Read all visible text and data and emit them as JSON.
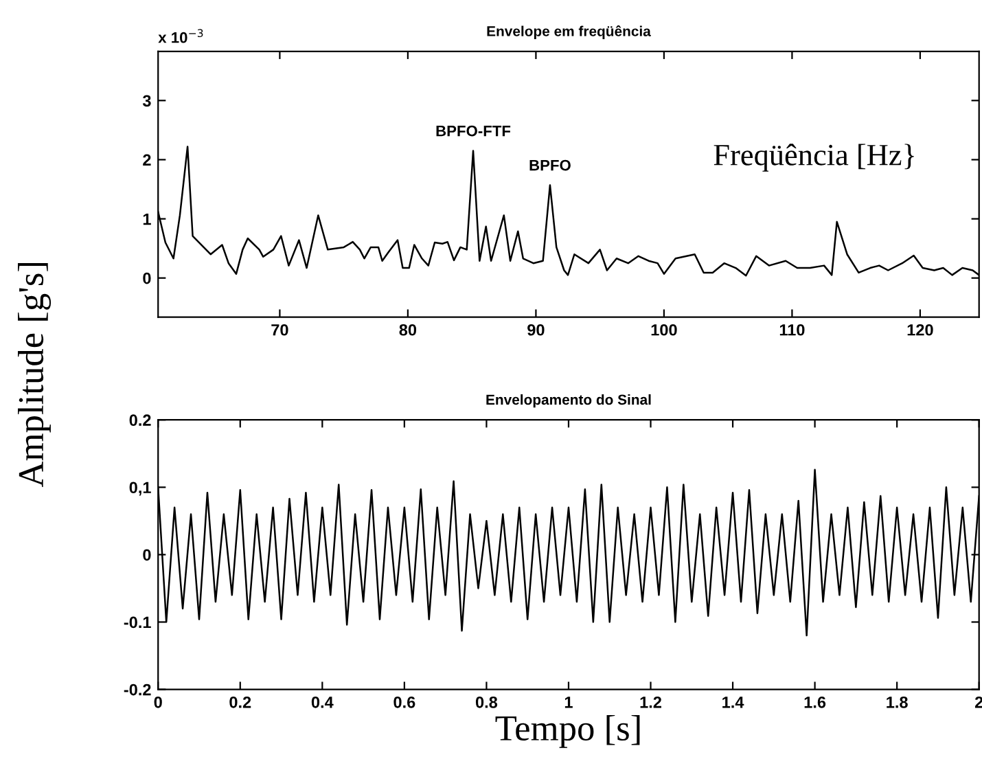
{
  "chart_data": [
    {
      "type": "line",
      "title": "Envelope em freqüência",
      "ylabel": "Amplitude [g's]",
      "x": [
        60.5,
        61.07,
        61.7,
        62.2,
        62.8,
        63.2,
        64.6,
        65.5,
        66.0,
        66.6,
        67.1,
        67.5,
        68.4,
        68.7,
        69.5,
        70.1,
        70.7,
        71.5,
        72.1,
        73.0,
        73.75,
        75.0,
        75.7,
        76.25,
        76.6,
        77.1,
        77.7,
        78.0,
        78.5,
        79.2,
        79.6,
        80.1,
        80.5,
        81.1,
        81.6,
        82.1,
        82.7,
        83.1,
        83.6,
        84.1,
        84.6,
        85.1,
        85.6,
        86.1,
        86.5,
        87.5,
        88.0,
        88.6,
        89.0,
        89.8,
        90.55,
        91.1,
        91.6,
        92.2,
        92.5,
        93.0,
        94.1,
        95.0,
        95.55,
        96.3,
        97.2,
        98.0,
        98.8,
        99.5,
        100.0,
        100.9,
        102.4,
        103.1,
        103.8,
        104.7,
        105.6,
        106.4,
        107.2,
        108.2,
        109.5,
        110.4,
        111.4,
        112.5,
        113.1,
        113.5,
        114.3,
        115.2,
        116.1,
        116.8,
        117.5,
        118.6,
        119.5,
        120.2,
        121.1,
        121.8,
        122.5,
        123.3,
        124.1,
        124.6
      ],
      "series": [
        {
          "color": "#000000",
          "values": [
            1.12,
            0.6,
            0.33,
            1.06,
            2.22,
            0.71,
            0.4,
            0.56,
            0.25,
            0.07,
            0.48,
            0.67,
            0.48,
            0.36,
            0.48,
            0.71,
            0.21,
            0.64,
            0.17,
            1.06,
            0.48,
            0.52,
            0.61,
            0.48,
            0.33,
            0.52,
            0.52,
            0.29,
            0.44,
            0.64,
            0.17,
            0.17,
            0.56,
            0.33,
            0.21,
            0.6,
            0.58,
            0.61,
            0.3,
            0.52,
            0.48,
            2.15,
            0.29,
            0.87,
            0.29,
            1.06,
            0.29,
            0.79,
            0.33,
            0.25,
            0.29,
            1.57,
            0.52,
            0.13,
            0.05,
            0.4,
            0.25,
            0.48,
            0.13,
            0.33,
            0.25,
            0.37,
            0.29,
            0.25,
            0.07,
            0.33,
            0.4,
            0.09,
            0.09,
            0.25,
            0.17,
            0.04,
            0.37,
            0.21,
            0.29,
            0.17,
            0.17,
            0.21,
            0.05,
            0.95,
            0.4,
            0.09,
            0.17,
            0.21,
            0.13,
            0.25,
            0.38,
            0.17,
            0.13,
            0.17,
            0.05,
            0.17,
            0.13,
            0.05
          ]
        }
      ],
      "xlim": [
        60.5,
        124.6
      ],
      "ylim": [
        -0.66,
        3.83
      ],
      "xticks": [
        70,
        80,
        90,
        100,
        110,
        120
      ],
      "yticks": [
        0,
        1,
        2,
        3
      ],
      "annotations": [
        "x 10$^{−3}$",
        "Freqüência [Hz}",
        {
          "text": "BPFO-FTF",
          "x": 85.1,
          "y": 2.15
        },
        {
          "text": "BPFO",
          "x": 91.1,
          "y": 1.57
        }
      ],
      "grid": false,
      "legend": false,
      "marker": "none",
      "line_style": "solid"
    },
    {
      "type": "line",
      "title": "Envelopamento do Sinal",
      "xlabel": "Tempo [s]",
      "x": [
        0.0,
        0.02,
        0.04,
        0.06,
        0.08,
        0.1,
        0.12,
        0.14,
        0.16,
        0.18,
        0.2,
        0.22,
        0.24,
        0.26,
        0.28,
        0.3,
        0.32,
        0.34,
        0.36,
        0.38,
        0.4,
        0.42,
        0.44,
        0.46,
        0.48,
        0.5,
        0.52,
        0.54,
        0.56,
        0.58,
        0.6,
        0.62,
        0.64,
        0.66,
        0.68,
        0.7,
        0.72,
        0.74,
        0.76,
        0.78,
        0.8,
        0.82,
        0.84,
        0.86,
        0.88,
        0.9,
        0.92,
        0.94,
        0.96,
        0.98,
        1.0,
        1.02,
        1.04,
        1.06,
        1.08,
        1.1,
        1.12,
        1.14,
        1.16,
        1.18,
        1.2,
        1.22,
        1.24,
        1.26,
        1.28,
        1.3,
        1.32,
        1.34,
        1.36,
        1.38,
        1.4,
        1.42,
        1.44,
        1.46,
        1.48,
        1.5,
        1.52,
        1.54,
        1.56,
        1.58,
        1.6,
        1.62,
        1.64,
        1.66,
        1.68,
        1.7,
        1.72,
        1.74,
        1.76,
        1.78,
        1.8,
        1.82,
        1.84,
        1.86,
        1.88,
        1.9,
        1.92,
        1.94,
        1.96,
        1.98,
        2.0
      ],
      "series": [
        {
          "color": "#000000",
          "values": [
            0.1,
            -0.1,
            0.07,
            -0.08,
            0.06,
            -0.096,
            0.092,
            -0.07,
            0.06,
            -0.06,
            0.096,
            -0.096,
            0.06,
            -0.07,
            0.07,
            -0.096,
            0.083,
            -0.06,
            0.092,
            -0.07,
            0.07,
            -0.06,
            0.104,
            -0.104,
            0.06,
            -0.07,
            0.096,
            -0.096,
            0.07,
            -0.06,
            0.07,
            -0.07,
            0.097,
            -0.096,
            0.07,
            -0.06,
            0.109,
            -0.113,
            0.06,
            -0.05,
            0.05,
            -0.06,
            0.06,
            -0.07,
            0.07,
            -0.096,
            0.06,
            -0.07,
            0.07,
            -0.06,
            0.07,
            -0.07,
            0.097,
            -0.1,
            0.104,
            -0.1,
            0.07,
            -0.06,
            0.06,
            -0.07,
            0.07,
            -0.06,
            0.1,
            -0.1,
            0.104,
            -0.07,
            0.06,
            -0.091,
            0.07,
            -0.06,
            0.092,
            -0.07,
            0.096,
            -0.087,
            0.06,
            -0.06,
            0.06,
            -0.07,
            0.08,
            -0.12,
            0.126,
            -0.07,
            0.06,
            -0.06,
            0.07,
            -0.078,
            0.078,
            -0.06,
            0.087,
            -0.07,
            0.07,
            -0.06,
            0.06,
            -0.07,
            0.07,
            -0.094,
            0.1,
            -0.06,
            0.07,
            -0.07,
            0.087
          ]
        }
      ],
      "xlim": [
        0,
        2
      ],
      "ylim": [
        -0.2,
        0.2
      ],
      "xticks": [
        0,
        0.2,
        0.4,
        0.6,
        0.8,
        1,
        1.2,
        1.4,
        1.6,
        1.8,
        2
      ],
      "yticks": [
        -0.2,
        -0.1,
        0,
        {
          "value": 0.1,
          "label": "0,1"
        },
        0.2
      ],
      "grid": false,
      "legend": false,
      "marker": "none",
      "line_style": "solid"
    }
  ]
}
